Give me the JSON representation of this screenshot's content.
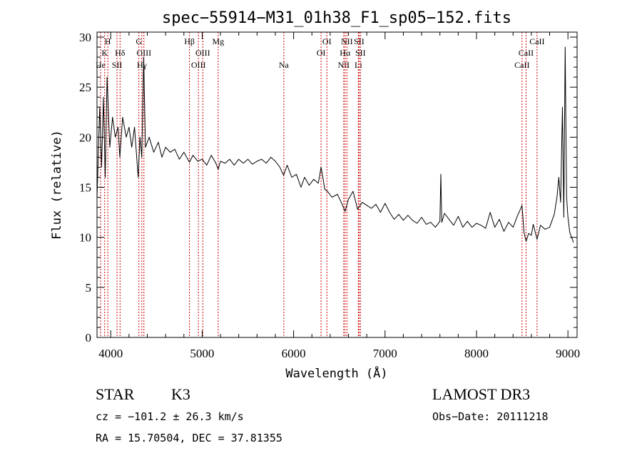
{
  "chart_data": {
    "type": "line",
    "title": "spec−55914−M31_01h38_F1_sp05−152.fits",
    "xlabel": "Wavelength (Å)",
    "ylabel": "Flux (relative)",
    "xlim": [
      3850,
      9100
    ],
    "ylim": [
      0,
      30.5
    ],
    "x_ticks": [
      4000,
      5000,
      6000,
      7000,
      8000,
      9000
    ],
    "y_ticks": [
      0,
      5,
      10,
      15,
      20,
      25,
      30
    ],
    "series": [
      {
        "name": "spectrum",
        "x": [
          3850,
          3880,
          3900,
          3920,
          3940,
          3960,
          3990,
          4020,
          4050,
          4080,
          4100,
          4130,
          4170,
          4200,
          4230,
          4260,
          4300,
          4320,
          4340,
          4360,
          4380,
          4420,
          4470,
          4520,
          4560,
          4600,
          4650,
          4700,
          4750,
          4800,
          4861,
          4900,
          4950,
          5000,
          5050,
          5100,
          5150,
          5175,
          5200,
          5250,
          5300,
          5350,
          5400,
          5450,
          5500,
          5550,
          5600,
          5650,
          5700,
          5750,
          5800,
          5850,
          5890,
          5930,
          5980,
          6030,
          6080,
          6120,
          6170,
          6220,
          6270,
          6300,
          6320,
          6340,
          6370,
          6420,
          6480,
          6530,
          6563,
          6600,
          6650,
          6700,
          6750,
          6800,
          6850,
          6900,
          6950,
          7000,
          7050,
          7100,
          7150,
          7200,
          7250,
          7300,
          7350,
          7400,
          7450,
          7500,
          7550,
          7600,
          7610,
          7620,
          7650,
          7700,
          7750,
          7800,
          7850,
          7900,
          7950,
          8000,
          8050,
          8100,
          8150,
          8200,
          8250,
          8300,
          8350,
          8400,
          8450,
          8480,
          8498,
          8520,
          8542,
          8570,
          8600,
          8620,
          8662,
          8700,
          8750,
          8800,
          8850,
          8880,
          8900,
          8920,
          8940,
          8955,
          8970,
          8985,
          9000,
          9020,
          9040,
          9060
        ],
        "values": [
          14,
          23,
          17,
          24,
          16,
          26,
          19,
          22,
          20,
          21,
          18,
          22,
          20,
          21,
          19,
          21,
          16,
          20,
          18,
          28,
          19,
          20,
          18.5,
          19.5,
          18,
          19,
          18.5,
          18.8,
          17.8,
          18.5,
          17.5,
          18.2,
          17.6,
          17.8,
          17.2,
          18.2,
          17.4,
          16.8,
          17.6,
          17.4,
          17.8,
          17.2,
          17.8,
          17.4,
          17.8,
          17.3,
          17.6,
          17.8,
          17.4,
          18.0,
          17.6,
          17.0,
          16.2,
          17.2,
          16.0,
          16.3,
          15.0,
          16.0,
          15.2,
          15.8,
          15.4,
          17.0,
          16.0,
          14.8,
          14.6,
          14.0,
          14.3,
          13.3,
          12.6,
          13.8,
          14.6,
          12.8,
          13.5,
          13.2,
          12.9,
          13.3,
          12.5,
          13.4,
          12.5,
          11.8,
          12.3,
          11.7,
          12.2,
          11.7,
          11.4,
          12.0,
          11.3,
          11.5,
          11.0,
          11.6,
          16.3,
          11.5,
          12.4,
          11.8,
          11.2,
          12.1,
          11.0,
          11.6,
          11.0,
          11.4,
          11.2,
          10.9,
          12.5,
          11.0,
          11.8,
          10.6,
          11.5,
          11.0,
          12.2,
          12.8,
          13.2,
          10.5,
          9.6,
          10.4,
          10.2,
          11.3,
          9.8,
          11.2,
          10.8,
          11.0,
          12.3,
          14.0,
          16.0,
          13.5,
          23.0,
          12.0,
          29.0,
          14.0,
          12.0,
          10.5,
          10.0,
          9.5
        ]
      }
    ],
    "line_markers": [
      {
        "label": "He",
        "wave": 3889,
        "row": 3
      },
      {
        "label": "K",
        "wave": 3934,
        "row": 2
      },
      {
        "label": "H",
        "wave": 3968,
        "row": 1
      },
      {
        "label": "SII",
        "wave": 4069,
        "row": 3
      },
      {
        "label": "Hδ",
        "wave": 4102,
        "row": 2
      },
      {
        "label": "G",
        "wave": 4308,
        "row": 1
      },
      {
        "label": "Hγ",
        "wave": 4340,
        "row": 3
      },
      {
        "label": "OIII",
        "wave": 4363,
        "row": 2
      },
      {
        "label": "Hβ",
        "wave": 4861,
        "row": 1
      },
      {
        "label": "OIII",
        "wave": 4959,
        "row": 3
      },
      {
        "label": "OIII",
        "wave": 5007,
        "row": 2
      },
      {
        "label": "Mg",
        "wave": 5175,
        "row": 1
      },
      {
        "label": "Na",
        "wave": 5893,
        "row": 3
      },
      {
        "label": "OI",
        "wave": 6300,
        "row": 2
      },
      {
        "label": "OI",
        "wave": 6364,
        "row": 1
      },
      {
        "label": "NII",
        "wave": 6548,
        "row": 3
      },
      {
        "label": "NII",
        "wave": 6583,
        "row": 1
      },
      {
        "label": "Hα",
        "wave": 6563,
        "row": 2
      },
      {
        "label": "Li",
        "wave": 6708,
        "row": 3
      },
      {
        "label": "SII",
        "wave": 6716,
        "row": 1
      },
      {
        "label": "SII",
        "wave": 6731,
        "row": 2
      },
      {
        "label": "CaII",
        "wave": 8498,
        "row": 3
      },
      {
        "label": "CaII",
        "wave": 8542,
        "row": 2
      },
      {
        "label": "CaII",
        "wave": 8662,
        "row": 1
      }
    ],
    "colors": {
      "marker": "#cc0000",
      "spectrum": "#000000",
      "axes": "#000000"
    }
  },
  "info": {
    "class": "STAR",
    "subclass": "K3",
    "survey": "LAMOST DR3",
    "cz": "cz = −101.2 ± 26.3 km/s",
    "obs_date": "Obs−Date: 20111218",
    "coords": "RA =  15.70504, DEC =  37.81355"
  }
}
